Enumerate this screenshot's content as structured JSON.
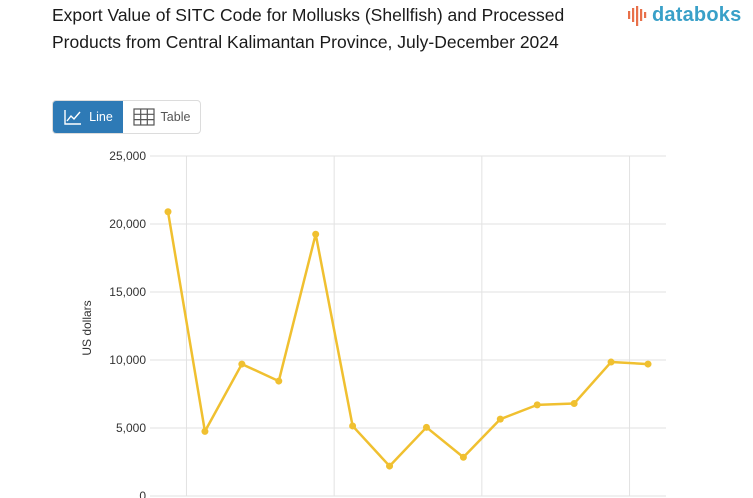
{
  "title": "Export Value of SITC Code for Mollusks (Shellfish) and Processed Products from Central Kalimantan Province, July-December 2024",
  "brand": "databoks",
  "view_toggle": {
    "line_label": "Line",
    "table_label": "Table",
    "selected": "Line"
  },
  "colors": {
    "series": "#f0c030",
    "accent": "#2e7ab6",
    "brand": "#39a0c8",
    "brand_icon": "#e8704a"
  },
  "chart_data": {
    "type": "line",
    "ylabel": "US dollars",
    "ylim": [
      0,
      25000
    ],
    "yticks": [
      "0",
      "5,000",
      "10,000",
      "15,000",
      "20,000",
      "25,000"
    ],
    "grid": true,
    "series": [
      {
        "values": [
          20900,
          4750,
          9700,
          8450,
          19250,
          5150,
          2200,
          5050,
          2850,
          5650,
          6700,
          6800,
          9850,
          9700
        ]
      }
    ]
  }
}
